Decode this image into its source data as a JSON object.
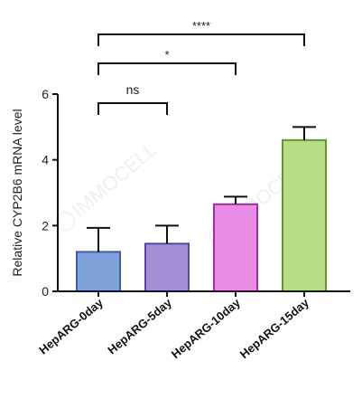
{
  "chart_data": {
    "type": "bar",
    "ylabel": "Relative CYP2B6 mRNA level",
    "xlabel": "",
    "title": "",
    "ylim": [
      0,
      6
    ],
    "yticks": [
      "0",
      "2",
      "4",
      "6"
    ],
    "grid": false,
    "legend": "none",
    "categories": [
      "HepARG-0day",
      "HepARG-5day",
      "HepARG-10day",
      "HepARG-15day"
    ],
    "values": [
      1.2,
      1.45,
      2.65,
      4.6
    ],
    "errors": [
      0.73,
      0.55,
      0.23,
      0.4
    ],
    "colors": {
      "fill": [
        "#7fa0d8",
        "#a58fd6",
        "#e88ce6",
        "#b8dc86"
      ],
      "stroke": [
        "#3a5fb0",
        "#5b43a8",
        "#a52aa5",
        "#5e9a2a"
      ]
    },
    "significance": [
      {
        "from": 0,
        "to": 1,
        "label": "ns"
      },
      {
        "from": 0,
        "to": 2,
        "label": "*"
      },
      {
        "from": 0,
        "to": 3,
        "label": "****"
      }
    ],
    "watermark": "IMMOCELL"
  }
}
